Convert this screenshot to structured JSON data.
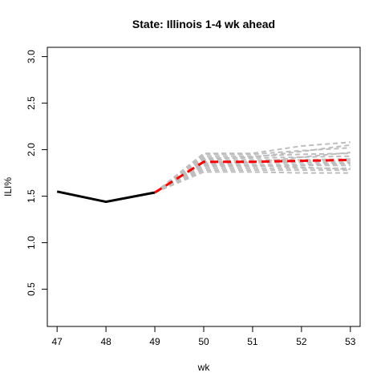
{
  "chart_data": {
    "type": "line",
    "title": "State: Illinois 1-4 wk ahead",
    "xlabel": "wk",
    "ylabel": "ILI%",
    "xlim": [
      46.8,
      53.2
    ],
    "ylim": [
      0.1,
      3.1
    ],
    "xticks": [
      47,
      48,
      49,
      50,
      51,
      52,
      53
    ],
    "yticks": [
      0.5,
      1.0,
      1.5,
      2.0,
      2.5,
      3.0
    ],
    "ytick_labels": [
      "0.5",
      "1.0",
      "1.5",
      "2.0",
      "2.5",
      "3.0"
    ],
    "grid": false,
    "legend": "none",
    "series": [
      {
        "role": "observed",
        "color": "#000000",
        "x": [
          47,
          48,
          49
        ],
        "y": [
          1.55,
          1.44,
          1.54
        ]
      },
      {
        "role": "median-forecast",
        "color": "#ff0000",
        "x": [
          49,
          50,
          51,
          52,
          53
        ],
        "y": [
          1.54,
          1.87,
          1.87,
          1.88,
          1.89
        ]
      }
    ],
    "ensemble": {
      "color": "#bebebe",
      "x": [
        49,
        50,
        51,
        52,
        53
      ],
      "paths": [
        [
          1.54,
          1.76,
          1.76,
          1.75,
          1.75
        ],
        [
          1.54,
          1.78,
          1.78,
          1.78,
          1.78
        ],
        [
          1.54,
          1.8,
          1.8,
          1.8,
          1.8
        ],
        [
          1.54,
          1.82,
          1.82,
          1.83,
          1.83
        ],
        [
          1.54,
          1.84,
          1.84,
          1.84,
          1.85
        ],
        [
          1.54,
          1.86,
          1.86,
          1.86,
          1.86
        ],
        [
          1.54,
          1.87,
          1.87,
          1.88,
          1.88
        ],
        [
          1.54,
          1.89,
          1.89,
          1.89,
          1.9
        ],
        [
          1.54,
          1.91,
          1.91,
          1.92,
          1.93
        ],
        [
          1.54,
          1.93,
          1.93,
          1.95,
          1.96
        ],
        [
          1.54,
          1.95,
          1.95,
          1.99,
          2.02
        ],
        [
          1.54,
          1.96,
          1.96,
          2.04,
          2.08
        ],
        [
          1.54,
          1.85,
          1.86,
          1.92,
          1.97
        ],
        [
          1.54,
          1.83,
          1.83,
          1.81,
          1.79
        ],
        [
          1.54,
          1.9,
          1.92,
          1.98,
          2.05
        ]
      ]
    }
  }
}
